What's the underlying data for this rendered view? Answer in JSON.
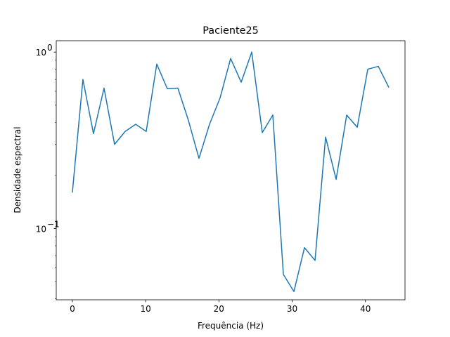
{
  "chart_data": {
    "type": "line",
    "title": "Paciente25",
    "xlabel": "Frequência (Hz)",
    "ylabel": "Densidade espectral",
    "yscale": "log",
    "xlim": [
      -2.2,
      45.4
    ],
    "ylim": [
      0.0395,
      1.16
    ],
    "grid": false,
    "x_ticks": [
      0,
      10,
      20,
      30,
      40
    ],
    "y_ticks": [
      {
        "value": 0.1,
        "label": "10",
        "exp": "−1"
      },
      {
        "value": 1,
        "label": "10",
        "exp": "0"
      }
    ],
    "series": [
      {
        "color": "#1f77b4",
        "x": [
          0,
          1.44,
          2.88,
          4.32,
          5.76,
          7.2,
          8.64,
          10.08,
          11.52,
          12.96,
          14.4,
          15.84,
          17.28,
          18.72,
          20.16,
          21.6,
          23.04,
          24.48,
          25.92,
          27.36,
          28.8,
          30.24,
          31.68,
          33.12,
          34.56,
          36.0,
          37.44,
          38.88,
          40.32,
          41.76,
          43.2
        ],
        "y": [
          0.16,
          0.7,
          0.345,
          0.625,
          0.3,
          0.355,
          0.39,
          0.355,
          0.855,
          0.62,
          0.625,
          0.41,
          0.25,
          0.39,
          0.55,
          0.92,
          0.675,
          1.0,
          0.35,
          0.44,
          0.055,
          0.044,
          0.078,
          0.066,
          0.33,
          0.19,
          0.44,
          0.375,
          0.8,
          0.83,
          0.63
        ]
      }
    ]
  }
}
